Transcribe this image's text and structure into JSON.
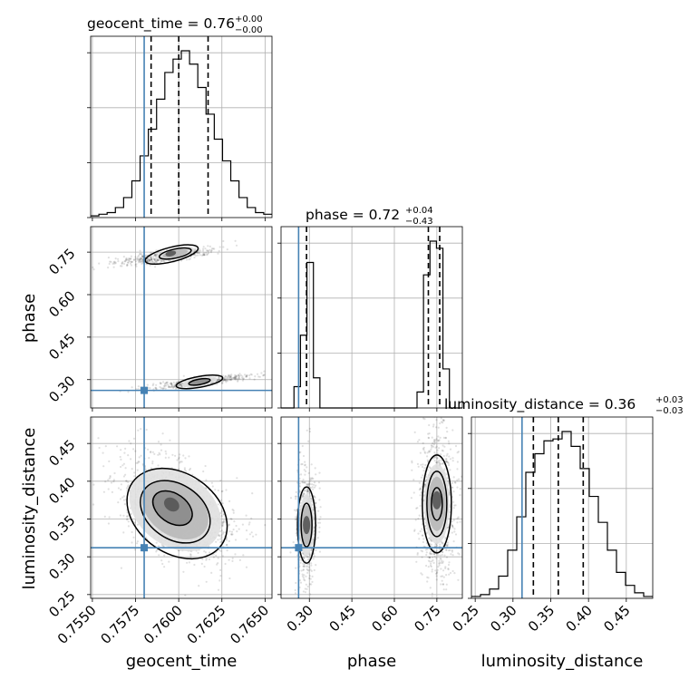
{
  "chart_data": {
    "type": "corner",
    "parameters": [
      "geocent_time",
      "phase",
      "luminosity_distance"
    ],
    "axis_labels": {
      "geocent_time": "geocent_time",
      "phase": "phase",
      "luminosity_distance": "luminosity_distance"
    },
    "ranges": {
      "geocent_time": [
        0.7549,
        0.7654
      ],
      "phase": [
        0.2,
        0.84
      ],
      "luminosity_distance": [
        0.245,
        0.485
      ]
    },
    "ticks": {
      "geocent_time": {
        "values": [
          0.755,
          0.7575,
          0.76,
          0.7625,
          0.765
        ],
        "labels": [
          "0.7550",
          "0.7575",
          "0.7600",
          "0.7625",
          "0.7650"
        ]
      },
      "phase": {
        "values": [
          0.3,
          0.45,
          0.6,
          0.75
        ],
        "labels": [
          "0.30",
          "0.45",
          "0.60",
          "0.75"
        ]
      },
      "luminosity_distance": {
        "values": [
          0.25,
          0.3,
          0.35,
          0.4,
          0.45
        ],
        "labels": [
          "0.25",
          "0.30",
          "0.35",
          "0.40",
          "0.45"
        ]
      }
    },
    "titles": {
      "geocent_time": {
        "name": "geocent_time",
        "median": "0.76",
        "plus": "+0.00",
        "minus": "−0.00"
      },
      "phase": {
        "name": "phase",
        "median": "0.72",
        "plus": "+0.04",
        "minus": "−0.43"
      },
      "luminosity_distance": {
        "name": "luminosity_distance",
        "median": "0.36",
        "plus": "+0.03",
        "minus": "−0.03"
      }
    },
    "truths": {
      "geocent_time": 0.758,
      "phase": 0.262,
      "luminosity_distance": 0.312
    },
    "quantiles": {
      "geocent_time": [
        0.7584,
        0.76,
        0.7617
      ],
      "phase": [
        0.29,
        0.72,
        0.76
      ],
      "luminosity_distance": [
        0.327,
        0.36,
        0.393
      ]
    },
    "histograms": {
      "geocent_time": [
        1,
        2,
        3,
        6,
        12,
        22,
        37,
        53,
        71,
        87,
        95,
        100,
        92,
        78,
        62,
        47,
        34,
        22,
        12,
        6,
        3,
        2
      ],
      "phase": [
        0,
        0,
        12,
        41,
        82,
        17,
        0,
        0,
        0,
        0,
        0,
        0,
        0,
        0,
        0,
        0,
        0,
        0,
        0,
        0,
        0,
        9,
        75,
        94,
        90,
        22,
        0,
        0
      ],
      "luminosity_distance": [
        1,
        2,
        5,
        12,
        26,
        44,
        68,
        78,
        85,
        86,
        90,
        82,
        70,
        55,
        41,
        26,
        14,
        7,
        3,
        1
      ]
    },
    "grid": true
  }
}
